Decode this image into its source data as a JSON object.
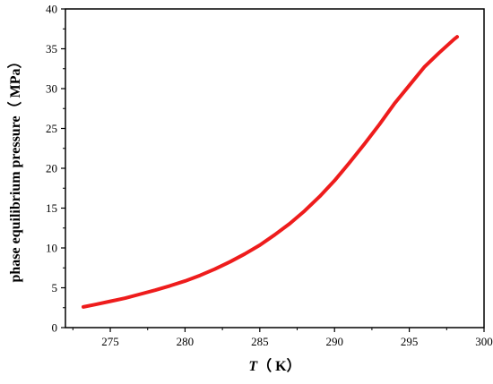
{
  "chart_data": {
    "type": "line",
    "title": "",
    "xlabel": {
      "symbol": "T",
      "rest": "（ K）"
    },
    "ylabel": "phase equilibrium pressure（ MPa）",
    "xlim": [
      272,
      300
    ],
    "ylim": [
      0,
      40
    ],
    "xticks": [
      "275",
      "280",
      "285",
      "290",
      "295",
      "300"
    ],
    "yticks": [
      "0",
      "5",
      "10",
      "15",
      "20",
      "25",
      "30",
      "35",
      "40"
    ],
    "grid": false,
    "legend": "none",
    "series": [
      {
        "color": "#ee1c1c",
        "x": [
          273.2,
          274,
          275,
          276,
          277,
          278,
          279,
          280,
          281,
          282,
          283,
          284,
          285,
          286,
          287,
          288,
          289,
          290,
          291,
          292,
          293,
          294,
          295,
          296,
          297,
          298,
          298.2
        ],
        "y": [
          2.6,
          2.9,
          3.3,
          3.7,
          4.2,
          4.7,
          5.25,
          5.85,
          6.55,
          7.35,
          8.25,
          9.25,
          10.35,
          11.65,
          13.05,
          14.65,
          16.45,
          18.45,
          20.7,
          23.05,
          25.5,
          28.1,
          30.4,
          32.7,
          34.5,
          36.2,
          36.5
        ]
      }
    ]
  }
}
